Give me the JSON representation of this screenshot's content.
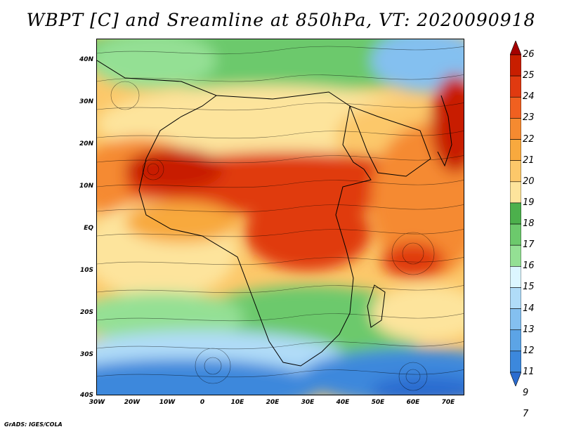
{
  "title": "WBPT [C] and Sreamline at 850hPa, VT: 2020090918",
  "credit": "GrADS: IGES/COLA",
  "lat_labels": [
    "40N",
    "30N",
    "20N",
    "10N",
    "EQ",
    "10S",
    "20S",
    "30S",
    "40S"
  ],
  "lon_labels": [
    "30W",
    "20W",
    "10W",
    "0",
    "10E",
    "20E",
    "30E",
    "40E",
    "50E",
    "60E",
    "70E"
  ],
  "colorbar": {
    "labels": [
      "26",
      "25",
      "24",
      "23",
      "22",
      "21",
      "20",
      "19",
      "18",
      "17",
      "16",
      "15",
      "14",
      "13",
      "12",
      "11",
      "9",
      "7"
    ],
    "colors": [
      "#a50000",
      "#c81e00",
      "#e03a10",
      "#f06020",
      "#f58a30",
      "#f8a93e",
      "#fcc86a",
      "#fde49c",
      "#4cb04c",
      "#6cc96c",
      "#94e094",
      "#dcf6ff",
      "#b0dcf8",
      "#84c0f0",
      "#5ca4e6",
      "#3c88dc",
      "#2a6cd0"
    ]
  },
  "map": {
    "lon_range": [
      -30,
      75
    ],
    "lat_range": [
      -40,
      45
    ],
    "field": "WBPT",
    "units": "C",
    "level": "850hPa",
    "valid_time": "2020090918"
  }
}
